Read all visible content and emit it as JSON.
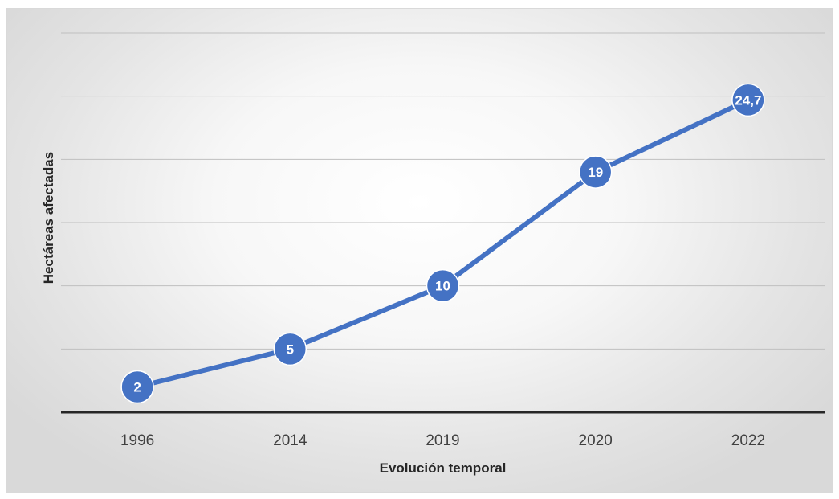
{
  "chart_data": {
    "type": "line",
    "title": "",
    "xlabel": "Evolución temporal",
    "ylabel": "Hectáreas afectadas",
    "categories": [
      "1996",
      "2014",
      "2019",
      "2020",
      "2022"
    ],
    "series": [
      {
        "values": [
          2,
          5,
          10,
          19,
          24.7
        ],
        "labels": [
          "2",
          "5",
          "10",
          "19",
          "24,7"
        ],
        "color": "#4472C4"
      }
    ],
    "ylim": [
      0,
      30
    ],
    "y_gridlines": [
      5,
      10,
      15,
      20,
      25,
      30
    ],
    "y_tick_labels_shown": false,
    "grid": true,
    "legend": "none",
    "colors": {
      "line": "#4472C4",
      "marker": "#4472C4",
      "marker_border": "#ffffff",
      "gridline": "#bfbfbf",
      "axis": "#262626"
    }
  }
}
